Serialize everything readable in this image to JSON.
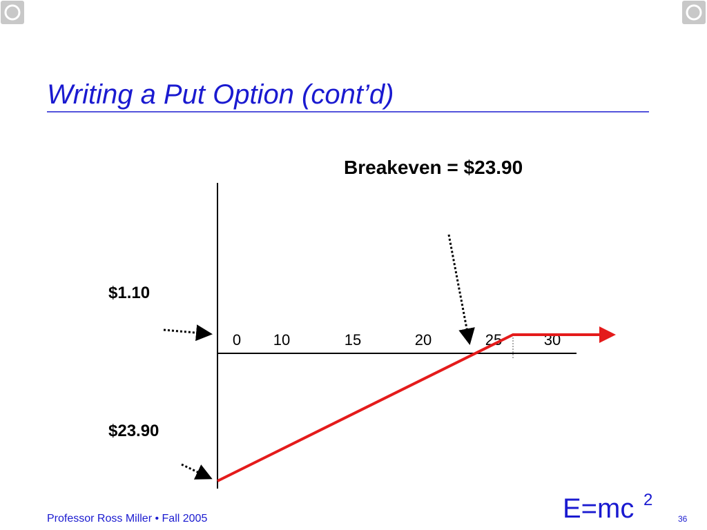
{
  "title": "Writing a Put Option (cont’d)",
  "annotations": {
    "breakeven": "Breakeven = $23.90",
    "premium": "$1.10",
    "max_loss": "$23.90"
  },
  "axis_labels": [
    "0",
    "10",
    "15",
    "20",
    "25",
    "30"
  ],
  "footer": {
    "credit": "Professor Ross Miller • Fall 2005",
    "logo": "E=mc",
    "logo_exponent": "2",
    "page": "36"
  }
}
